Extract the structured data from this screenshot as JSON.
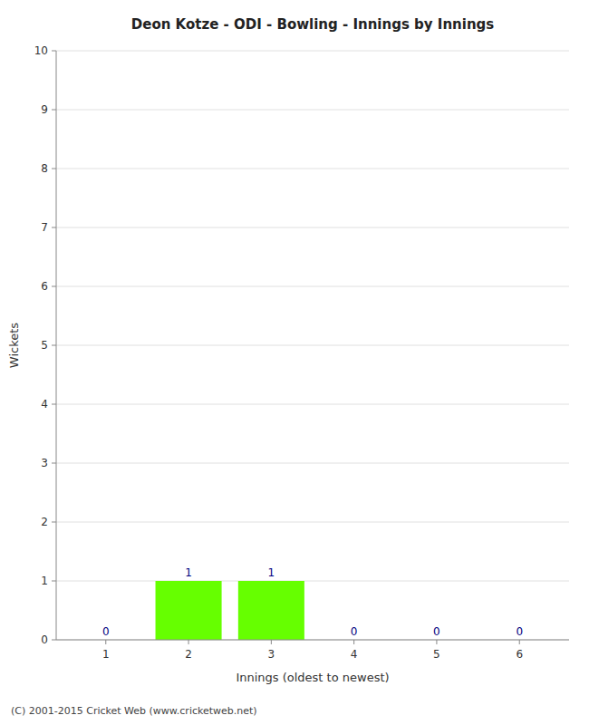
{
  "chart_data": {
    "type": "bar",
    "title": "Deon Kotze - ODI - Bowling - Innings by Innings",
    "x_label": "Innings (oldest to newest)",
    "y_label": "Wickets",
    "x": [
      1,
      2,
      3,
      4,
      5,
      6
    ],
    "values": [
      0,
      1,
      1,
      0,
      0,
      0
    ],
    "color": "#66ff00",
    "xlim": [
      0.4,
      6.6
    ],
    "xticks": [
      1,
      2,
      3,
      4,
      5,
      6
    ],
    "ylim": [
      0,
      10
    ],
    "yticks": [
      0,
      1,
      2,
      3,
      4,
      5,
      6,
      7,
      8,
      9,
      10
    ],
    "grid": true,
    "data_labels": true,
    "annotations": [
      "(C) 2001-2015 Cricket Web (www.cricketweb.net)"
    ]
  }
}
